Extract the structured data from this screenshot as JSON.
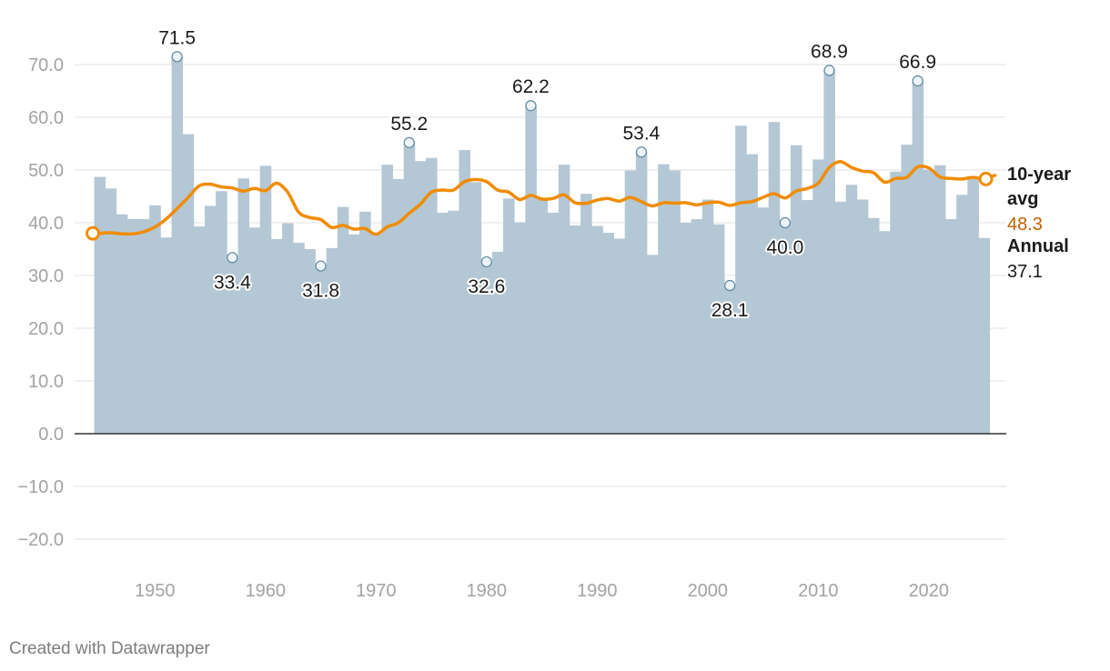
{
  "colors": {
    "bar": "#b4c7d4",
    "line": "#f08c00",
    "grid": "#e1e1e1",
    "zero": "#333333",
    "avg_label": "#c06000",
    "tick": "#a3a3a3"
  },
  "credit": "Created with Datawrapper",
  "chart_data": {
    "type": "bar+line",
    "x_start_year": 1945,
    "series": [
      {
        "name": "Annual",
        "type": "bar",
        "values": [
          48.7,
          46.5,
          41.6,
          40.7,
          40.7,
          43.3,
          37.2,
          71.5,
          56.8,
          39.3,
          43.2,
          46.0,
          33.4,
          48.4,
          39.1,
          50.8,
          36.9,
          39.9,
          36.2,
          35.0,
          31.8,
          35.2,
          43.0,
          37.8,
          42.1,
          38.0,
          51.0,
          48.3,
          55.2,
          51.7,
          52.3,
          41.9,
          42.3,
          53.8,
          47.7,
          32.6,
          34.5,
          44.6,
          40.1,
          62.2,
          44.6,
          41.9,
          51.0,
          39.5,
          45.5,
          39.4,
          38.1,
          37.0,
          49.9,
          53.4,
          33.9,
          51.1,
          49.9,
          40.0,
          40.7,
          44.4,
          39.7,
          28.1,
          58.4,
          53.0,
          42.9,
          59.1,
          40.0,
          54.7,
          44.3,
          52.0,
          68.9,
          44.0,
          47.2,
          44.4,
          40.9,
          38.4,
          49.7,
          54.8,
          66.9,
          50.1,
          50.9,
          40.7,
          45.3,
          48.3,
          37.1
        ]
      },
      {
        "name": "10-year avg",
        "type": "line",
        "values": [
          38.0,
          38.1,
          37.9,
          37.9,
          38.3,
          39.2,
          40.7,
          42.7,
          44.8,
          47.0,
          47.3,
          46.8,
          46.6,
          46.0,
          46.5,
          46.1,
          47.5,
          45.8,
          42.0,
          41.0,
          40.6,
          39.1,
          39.5,
          38.8,
          38.9,
          37.8,
          39.2,
          40.0,
          41.8,
          43.5,
          45.8,
          46.2,
          46.2,
          47.8,
          48.2,
          47.8,
          46.2,
          45.8,
          44.4,
          45.2,
          44.5,
          44.6,
          45.3,
          43.8,
          43.7,
          44.3,
          44.6,
          44.1,
          44.8,
          44.0,
          43.2,
          43.8,
          43.7,
          43.8,
          43.4,
          43.8,
          43.9,
          43.3,
          43.8,
          44.0,
          44.8,
          45.5,
          44.7,
          46.0,
          46.5,
          47.5,
          50.5,
          51.6,
          50.5,
          49.8,
          49.5,
          47.7,
          48.4,
          48.6,
          50.6,
          50.4,
          48.7,
          48.4,
          48.3,
          48.6,
          48.3
        ]
      }
    ],
    "ylim": [
      -25.0,
      75.0
    ],
    "yticks": [
      "70.0",
      "60.0",
      "50.0",
      "40.0",
      "30.0",
      "20.0",
      "10.0",
      "0.0",
      "−10.0",
      "−20.0"
    ],
    "ytick_values": [
      70,
      60,
      50,
      40,
      30,
      20,
      10,
      0,
      -10,
      -20
    ],
    "xticks": [
      "1950",
      "1960",
      "1970",
      "1980",
      "1990",
      "2000",
      "2010",
      "2020"
    ],
    "xtick_values": [
      1950,
      1960,
      1970,
      1980,
      1990,
      2000,
      2010,
      2020
    ],
    "annotations": [
      {
        "year": 1952,
        "value": 71.5,
        "label": "71.5",
        "pos": "above"
      },
      {
        "year": 1957,
        "value": 33.4,
        "label": "33.4",
        "pos": "below"
      },
      {
        "year": 1965,
        "value": 31.8,
        "label": "31.8",
        "pos": "below"
      },
      {
        "year": 1973,
        "value": 55.2,
        "label": "55.2",
        "pos": "above"
      },
      {
        "year": 1980,
        "value": 32.6,
        "label": "32.6",
        "pos": "below"
      },
      {
        "year": 1984,
        "value": 62.2,
        "label": "62.2",
        "pos": "above"
      },
      {
        "year": 1994,
        "value": 53.4,
        "label": "53.4",
        "pos": "above"
      },
      {
        "year": 2002,
        "value": 28.1,
        "label": "28.1",
        "pos": "below"
      },
      {
        "year": 2007,
        "value": 40.0,
        "label": "40.0",
        "pos": "below"
      },
      {
        "year": 2011,
        "value": 68.9,
        "label": "68.9",
        "pos": "above"
      },
      {
        "year": 2019,
        "value": 66.9,
        "label": "66.9",
        "pos": "above"
      }
    ],
    "end_labels": {
      "avg_title_1": "10-year",
      "avg_title_2": "avg",
      "avg_value": "48.3",
      "annual_title": "Annual",
      "annual_value": "37.1"
    }
  }
}
